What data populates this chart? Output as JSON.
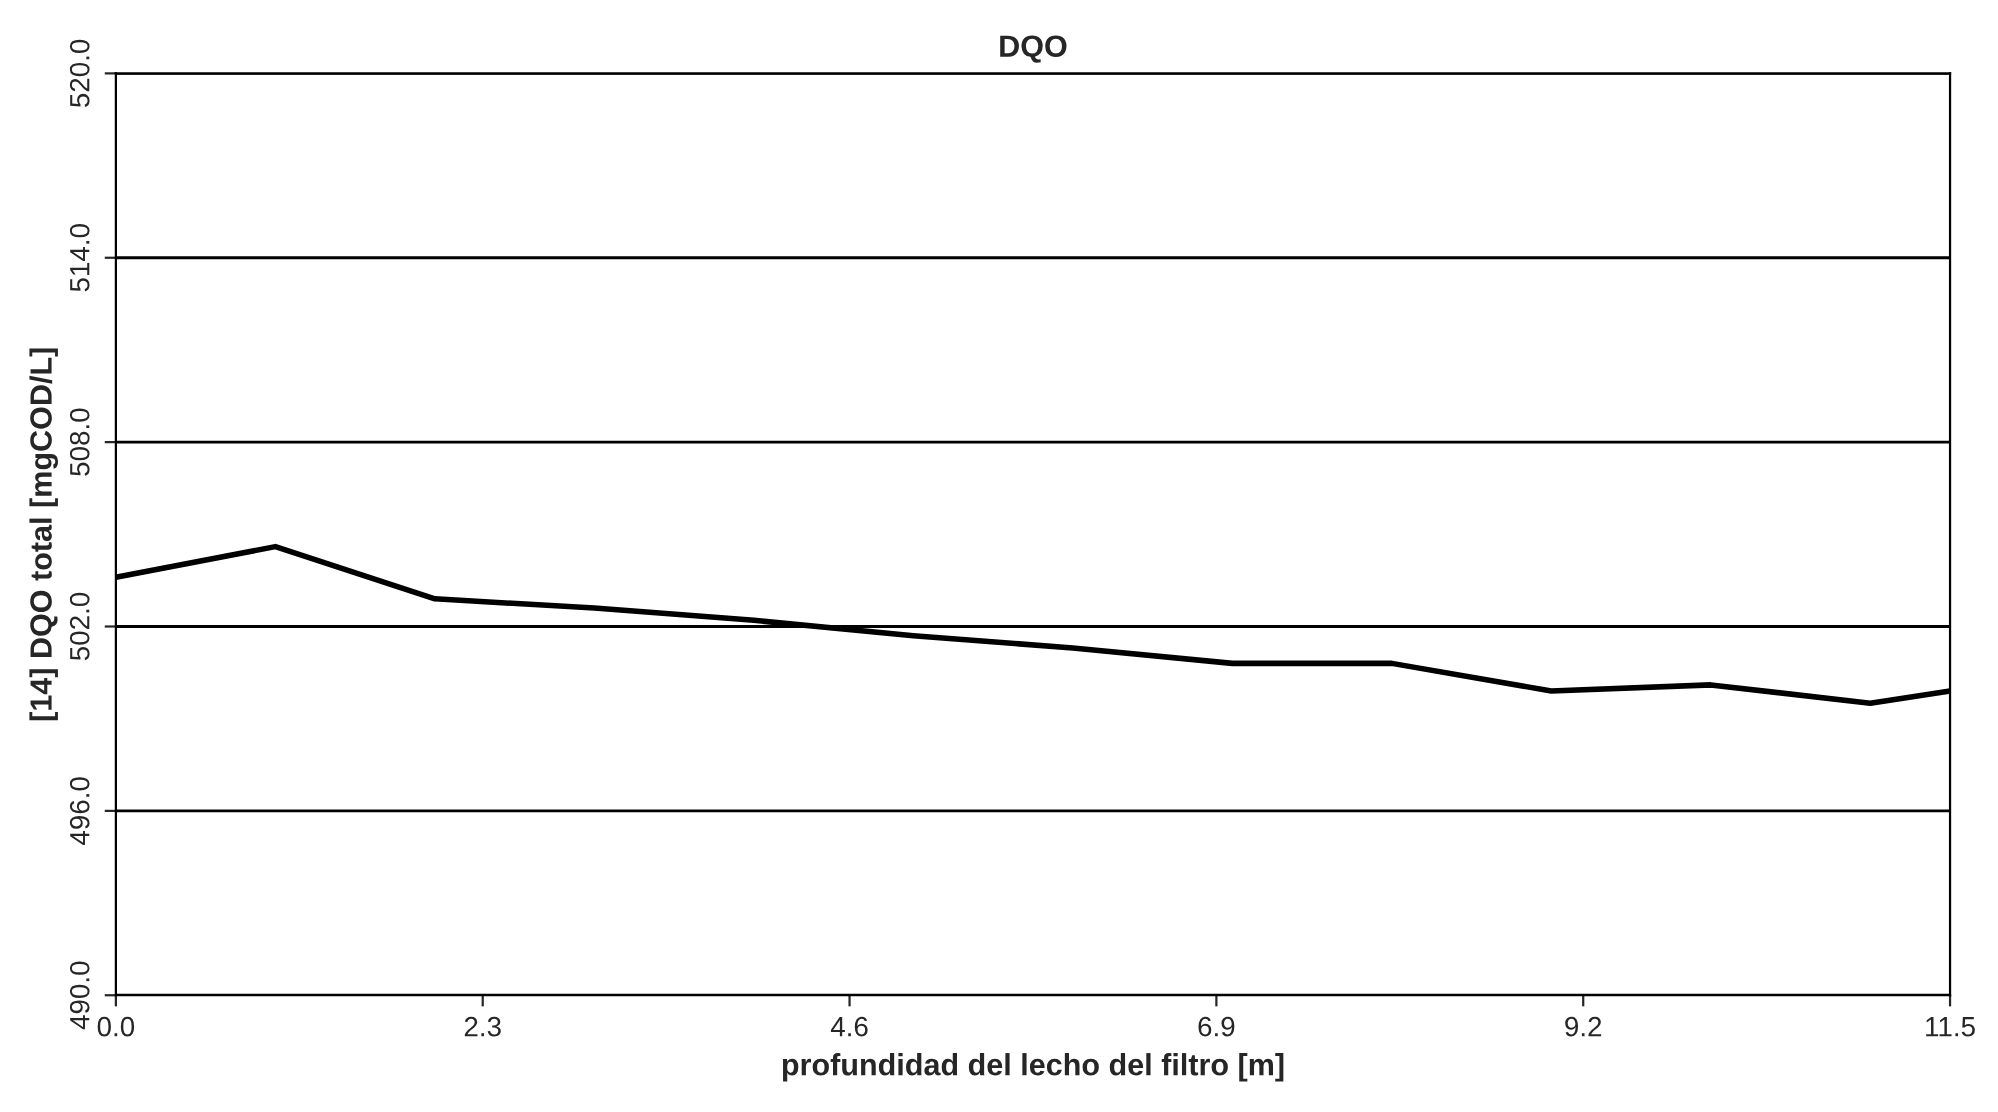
{
  "chart_data": {
    "type": "line",
    "title": "DQO",
    "xlabel": "profundidad del lecho del filtro [m]",
    "ylabel": "[14] DQO total [mgCOD/L]",
    "x": [
      0,
      1,
      2,
      3,
      4,
      5,
      6,
      7,
      8,
      9,
      10,
      11,
      11.5
    ],
    "series": [
      {
        "color": "#000000",
        "values": [
          503.6,
          504.6,
          502.9,
          502.6,
          502.2,
          501.7,
          501.3,
          500.8,
          500.8,
          499.9,
          500.1,
          499.5,
          499.9
        ]
      }
    ],
    "xlim": [
      0,
      11.5
    ],
    "xticks": [
      {
        "value": 0,
        "label": "0.0"
      },
      {
        "value": 2.3,
        "label": "2.3"
      },
      {
        "value": 4.6,
        "label": "4.6"
      },
      {
        "value": 6.9,
        "label": "6.9"
      },
      {
        "value": 9.2,
        "label": "9.2"
      },
      {
        "value": 11.5,
        "label": "11.5"
      }
    ],
    "ylim": [
      490,
      520
    ],
    "yticks": [
      {
        "value": 490,
        "label": "490.0"
      },
      {
        "value": 496,
        "label": "496.0"
      },
      {
        "value": 502,
        "label": "502.0"
      },
      {
        "value": 508,
        "label": "508.0"
      },
      {
        "value": 514,
        "label": "514.0"
      },
      {
        "value": 520,
        "label": "520.0"
      }
    ],
    "grid": "y",
    "line_style": "solid"
  }
}
